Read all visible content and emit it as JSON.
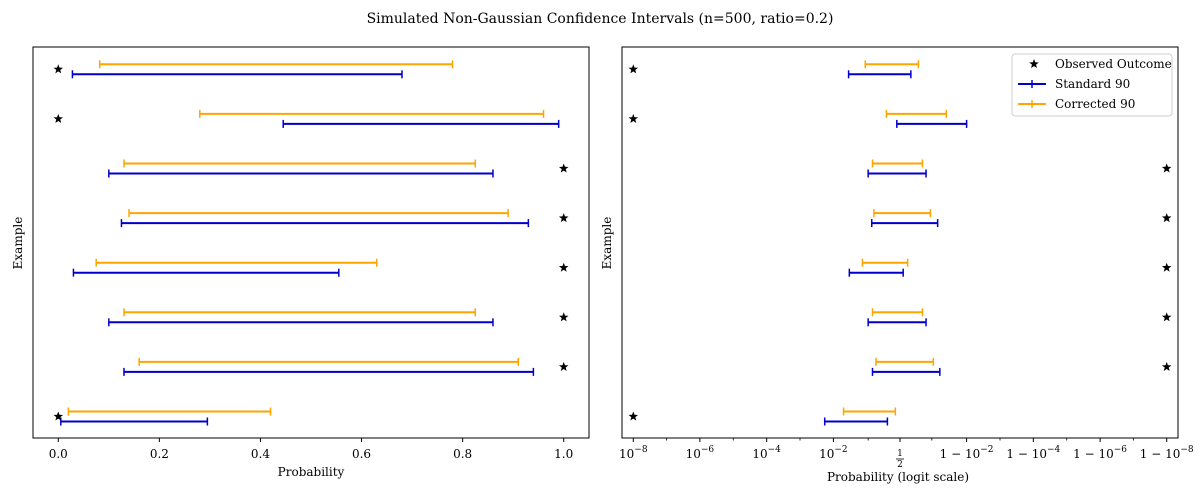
{
  "figure": {
    "title": "Simulated Non-Gaussian Confidence Intervals (n=500, ratio=0.2)"
  },
  "colors": {
    "standard": "#0000cc",
    "corrected": "#ffa500",
    "observed": "#000000",
    "axes": "#000000"
  },
  "chart_data": [
    {
      "type": "errorbar",
      "xlabel": "Probability",
      "ylabel": "Example",
      "xlim": [
        -0.05,
        1.05
      ],
      "xticks": [
        "0.0",
        "0.2",
        "0.4",
        "0.6",
        "0.8",
        "1.0"
      ],
      "xtick_values": [
        0.0,
        0.2,
        0.4,
        0.6,
        0.8,
        1.0
      ],
      "grid": false,
      "legend": "none",
      "examples": [
        {
          "observed": 0,
          "standard": [
            0.005,
            0.295
          ],
          "corrected": [
            0.02,
            0.42
          ]
        },
        {
          "observed": 1,
          "standard": [
            0.13,
            0.94
          ],
          "corrected": [
            0.16,
            0.91
          ]
        },
        {
          "observed": 1,
          "standard": [
            0.1,
            0.86
          ],
          "corrected": [
            0.13,
            0.825
          ]
        },
        {
          "observed": 1,
          "standard": [
            0.03,
            0.555
          ],
          "corrected": [
            0.075,
            0.63
          ]
        },
        {
          "observed": 1,
          "standard": [
            0.125,
            0.93
          ],
          "corrected": [
            0.14,
            0.89
          ]
        },
        {
          "observed": 1,
          "standard": [
            0.1,
            0.86
          ],
          "corrected": [
            0.13,
            0.825
          ]
        },
        {
          "observed": 0,
          "standard": [
            0.445,
            0.99
          ],
          "corrected": [
            0.28,
            0.96
          ]
        },
        {
          "observed": 0,
          "standard": [
            0.028,
            0.68
          ],
          "corrected": [
            0.082,
            0.78
          ]
        }
      ]
    },
    {
      "type": "errorbar",
      "xlabel": "Probability (logit scale)",
      "ylabel": "Example",
      "xscale": "logit",
      "xlim_logit": [
        -19.2,
        19.2
      ],
      "xtick_values_logit": [
        -18.42,
        -13.82,
        -9.21,
        -4.6,
        0,
        4.6,
        9.21,
        13.82,
        18.42
      ],
      "xticks": [
        "10^-8",
        "10^-6",
        "10^-4",
        "10^-2",
        "1/2",
        "1 - 10^-2",
        "1 - 10^-4",
        "1 - 10^-6",
        "1 - 10^-8"
      ],
      "grid": false,
      "legend": "top-right",
      "legend_entries": [
        "Observed Outcome",
        "Standard 90",
        "Corrected 90"
      ],
      "examples": [
        {
          "observed": 0,
          "standard_logit": [
            -5.2,
            -0.87
          ],
          "corrected_logit": [
            -3.9,
            -0.32
          ]
        },
        {
          "observed": 1,
          "standard_logit": [
            -1.9,
            2.75
          ],
          "corrected_logit": [
            -1.66,
            2.3
          ]
        },
        {
          "observed": 1,
          "standard_logit": [
            -2.2,
            1.8
          ],
          "corrected_logit": [
            -1.9,
            1.55
          ]
        },
        {
          "observed": 1,
          "standard_logit": [
            -3.5,
            0.22
          ],
          "corrected_logit": [
            -2.6,
            0.53
          ]
        },
        {
          "observed": 1,
          "standard_logit": [
            -1.95,
            2.6
          ],
          "corrected_logit": [
            -1.8,
            2.1
          ]
        },
        {
          "observed": 1,
          "standard_logit": [
            -2.2,
            1.8
          ],
          "corrected_logit": [
            -1.9,
            1.55
          ]
        },
        {
          "observed": 0,
          "standard_logit": [
            -0.22,
            4.6
          ],
          "corrected_logit": [
            -0.94,
            3.2
          ]
        },
        {
          "observed": 0,
          "standard_logit": [
            -3.55,
            0.75
          ],
          "corrected_logit": [
            -2.4,
            1.27
          ]
        }
      ]
    }
  ]
}
